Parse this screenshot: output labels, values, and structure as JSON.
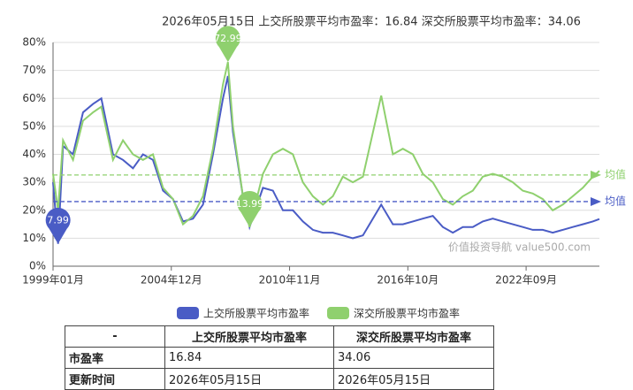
{
  "chart_data": {
    "type": "line",
    "title": "2026年05月15日  上交所股票平均市盈率：16.84   深交所股票平均市盈率：34.06",
    "watermark": "价值投资导航 value500.com",
    "x": [
      "1999-01",
      "1999-04",
      "1999-07",
      "2000-01",
      "2000-07",
      "2001-01",
      "2001-06",
      "2002-01",
      "2002-07",
      "2003-01",
      "2003-07",
      "2004-01",
      "2004-07",
      "2005-01",
      "2005-07",
      "2006-01",
      "2006-07",
      "2007-01",
      "2007-07",
      "2007-10",
      "2008-01",
      "2008-07",
      "2008-11",
      "2009-07",
      "2010-01",
      "2010-07",
      "2011-01",
      "2011-07",
      "2012-01",
      "2012-07",
      "2013-01",
      "2013-07",
      "2014-01",
      "2014-07",
      "2015-06",
      "2016-01",
      "2016-07",
      "2017-01",
      "2017-07",
      "2018-01",
      "2018-07",
      "2019-01",
      "2019-07",
      "2020-01",
      "2020-07",
      "2021-01",
      "2021-07",
      "2022-01",
      "2022-07",
      "2023-01",
      "2023-07",
      "2024-01",
      "2024-07",
      "2025-01",
      "2025-07",
      "2026-01",
      "2026-05"
    ],
    "xlim": [
      "1999-01",
      "2026-05"
    ],
    "xticks": [
      {
        "value": "1999-01",
        "label": "1999年01月"
      },
      {
        "value": "2004-12",
        "label": "2004年12月"
      },
      {
        "value": "2010-11",
        "label": "2010年11月"
      },
      {
        "value": "2016-10",
        "label": "2016年10月"
      },
      {
        "value": "2022-09",
        "label": "2022年09月"
      }
    ],
    "ylim": [
      0,
      80
    ],
    "yticks": [
      {
        "value": 0,
        "label": "0%"
      },
      {
        "value": 10,
        "label": "10%"
      },
      {
        "value": 20,
        "label": "20%"
      },
      {
        "value": 30,
        "label": "30%"
      },
      {
        "value": 40,
        "label": "40%"
      },
      {
        "value": 50,
        "label": "50%"
      },
      {
        "value": 60,
        "label": "60%"
      },
      {
        "value": 70,
        "label": "70%"
      },
      {
        "value": 80,
        "label": "80%"
      }
    ],
    "grid": true,
    "legend": "bottom",
    "series": [
      {
        "name": "上交所股票平均市盈率",
        "color": "#4a5cc5",
        "values": [
          30,
          8,
          43,
          40,
          55,
          58,
          60,
          40,
          38,
          35,
          40,
          38,
          27,
          24,
          16,
          17,
          22,
          40,
          60,
          68,
          48,
          25,
          14,
          28,
          27,
          20,
          20,
          16,
          13,
          12,
          12,
          11,
          10,
          11,
          22,
          15,
          15,
          16,
          17,
          18,
          14,
          12,
          14,
          14,
          16,
          17,
          16,
          15,
          14,
          13,
          13,
          12,
          13,
          14,
          15,
          16,
          16.84
        ],
        "mark_line": {
          "value": 23.1,
          "label": "均值"
        },
        "mark_points": [
          {
            "x": "1999-04",
            "value": 7.99
          }
        ]
      },
      {
        "name": "深交所股票平均市盈率",
        "color": "#8fd06e",
        "values": [
          33,
          20,
          45,
          38,
          52,
          55,
          57,
          38,
          45,
          40,
          38,
          40,
          28,
          24,
          15,
          18,
          25,
          42,
          65,
          72.99,
          50,
          25,
          13.99,
          33,
          40,
          42,
          40,
          30,
          25,
          22,
          25,
          32,
          30,
          32,
          61,
          40,
          42,
          40,
          33,
          30,
          24,
          22,
          25,
          27,
          32,
          33,
          32,
          30,
          27,
          26,
          24,
          20,
          22,
          25,
          28,
          32,
          34.06
        ],
        "mark_line": {
          "value": 32.6,
          "label": "均值"
        },
        "mark_points": [
          {
            "x": "2007-10",
            "value": 72.99
          },
          {
            "x": "2008-11",
            "value": 13.99
          }
        ]
      }
    ]
  },
  "table": {
    "header": [
      "-",
      "上交所股票平均市盈率",
      "深交所股票平均市盈率"
    ],
    "rows": [
      [
        "市盈率",
        16.84,
        34.06
      ],
      [
        "更新时间",
        "2026年05月15日",
        "2026年05月15日"
      ]
    ]
  }
}
